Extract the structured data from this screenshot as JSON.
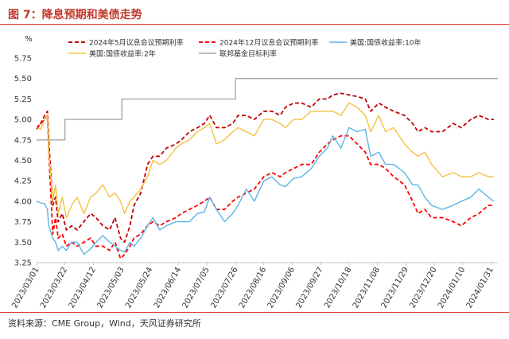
{
  "header": {
    "title": "图 7：降息预期和美债走势"
  },
  "footer": {
    "source": "资料来源：CME Group，Wind，天风证券研究所"
  },
  "chart_data": {
    "type": "line",
    "title": "",
    "xlabel": "",
    "ylabel": "%",
    "ylim": [
      3.25,
      5.75
    ],
    "yticks": [
      "3.25",
      "3.50",
      "3.75",
      "4.00",
      "4.25",
      "4.50",
      "4.75",
      "5.00",
      "5.25",
      "5.50",
      "5.75"
    ],
    "xticks": [
      "2023/03/01",
      "2023/03/22",
      "2023/04/12",
      "2023/05/03",
      "2023/05/24",
      "2023/06/14",
      "2023/07/05",
      "2023/07/26",
      "2023/08/16",
      "2023/09/06",
      "2023/09/27",
      "2023/10/18",
      "2023/11/08",
      "2023/11/29",
      "2023/12/20",
      "2024/01/10",
      "2024/01/31"
    ],
    "xrange": [
      "2023-03-01",
      "2024-02-05"
    ],
    "grid": false,
    "legend_position": "top",
    "series": [
      {
        "name": "2024年5月议息会议预期利率",
        "color": "#c00000",
        "style": "dashed",
        "x": [
          "2023-03-01",
          "2023-03-04",
          "2023-03-07",
          "2023-03-09",
          "2023-03-10",
          "2023-03-13",
          "2023-03-15",
          "2023-03-17",
          "2023-03-20",
          "2023-03-23",
          "2023-03-27",
          "2023-03-31",
          "2023-04-05",
          "2023-04-10",
          "2023-04-14",
          "2023-04-19",
          "2023-04-24",
          "2023-04-28",
          "2023-05-02",
          "2023-05-05",
          "2023-05-09",
          "2023-05-12",
          "2023-05-17",
          "2023-05-22",
          "2023-05-26",
          "2023-05-31",
          "2023-06-05",
          "2023-06-12",
          "2023-06-16",
          "2023-06-22",
          "2023-06-28",
          "2023-07-03",
          "2023-07-07",
          "2023-07-12",
          "2023-07-18",
          "2023-07-24",
          "2023-07-28",
          "2023-08-03",
          "2023-08-09",
          "2023-08-16",
          "2023-08-22",
          "2023-08-28",
          "2023-09-01",
          "2023-09-07",
          "2023-09-13",
          "2023-09-20",
          "2023-09-26",
          "2023-10-02",
          "2023-10-06",
          "2023-10-12",
          "2023-10-18",
          "2023-10-24",
          "2023-10-30",
          "2023-11-03",
          "2023-11-09",
          "2023-11-14",
          "2023-11-20",
          "2023-11-28",
          "2023-12-04",
          "2023-12-08",
          "2023-12-13",
          "2023-12-18",
          "2023-12-26",
          "2024-01-03",
          "2024-01-09",
          "2024-01-16",
          "2024-01-22",
          "2024-01-29",
          "2024-02-02"
        ],
        "values": [
          4.88,
          4.95,
          5.05,
          5.1,
          4.75,
          3.95,
          4.05,
          3.75,
          3.85,
          3.65,
          3.7,
          3.65,
          3.75,
          3.85,
          3.8,
          3.7,
          3.65,
          3.8,
          3.55,
          3.5,
          3.7,
          3.95,
          4.1,
          4.45,
          4.55,
          4.55,
          4.65,
          4.7,
          4.75,
          4.85,
          4.9,
          4.95,
          5.05,
          4.9,
          4.9,
          4.95,
          5.05,
          5.05,
          5.0,
          5.1,
          5.1,
          5.05,
          5.15,
          5.2,
          5.2,
          5.15,
          5.25,
          5.25,
          5.3,
          5.32,
          5.3,
          5.28,
          5.25,
          5.1,
          5.2,
          5.15,
          5.1,
          5.05,
          4.95,
          4.85,
          4.9,
          4.85,
          4.85,
          4.95,
          4.9,
          5.0,
          5.05,
          5.0,
          5.0
        ]
      },
      {
        "name": "2024年12月议息会议预期利率",
        "color": "#ff0000",
        "style": "dashed",
        "x": [
          "2023-03-01",
          "2023-03-04",
          "2023-03-07",
          "2023-03-09",
          "2023-03-10",
          "2023-03-13",
          "2023-03-15",
          "2023-03-17",
          "2023-03-20",
          "2023-03-23",
          "2023-03-27",
          "2023-03-31",
          "2023-04-05",
          "2023-04-10",
          "2023-04-14",
          "2023-04-19",
          "2023-04-24",
          "2023-04-28",
          "2023-05-02",
          "2023-05-05",
          "2023-05-09",
          "2023-05-12",
          "2023-05-17",
          "2023-05-22",
          "2023-05-26",
          "2023-05-31",
          "2023-06-05",
          "2023-06-12",
          "2023-06-16",
          "2023-06-22",
          "2023-06-28",
          "2023-07-03",
          "2023-07-07",
          "2023-07-12",
          "2023-07-18",
          "2023-07-24",
          "2023-07-28",
          "2023-08-03",
          "2023-08-09",
          "2023-08-16",
          "2023-08-22",
          "2023-08-28",
          "2023-09-01",
          "2023-09-07",
          "2023-09-13",
          "2023-09-20",
          "2023-09-26",
          "2023-10-02",
          "2023-10-06",
          "2023-10-12",
          "2023-10-18",
          "2023-10-24",
          "2023-10-30",
          "2023-11-03",
          "2023-11-09",
          "2023-11-14",
          "2023-11-20",
          "2023-11-28",
          "2023-12-04",
          "2023-12-08",
          "2023-12-13",
          "2023-12-18",
          "2023-12-26",
          "2024-01-03",
          "2024-01-09",
          "2024-01-16",
          "2024-01-22",
          "2024-01-29",
          "2024-02-02"
        ],
        "values": [
          4.9,
          4.95,
          5.0,
          5.05,
          4.6,
          3.6,
          3.8,
          3.55,
          3.6,
          3.45,
          3.5,
          3.45,
          3.5,
          3.55,
          3.45,
          3.45,
          3.4,
          3.5,
          3.3,
          3.35,
          3.45,
          3.55,
          3.6,
          3.7,
          3.75,
          3.7,
          3.75,
          3.8,
          3.85,
          3.9,
          3.95,
          4.0,
          4.05,
          3.9,
          3.9,
          4.0,
          4.05,
          4.1,
          4.15,
          4.3,
          4.35,
          4.3,
          4.35,
          4.4,
          4.45,
          4.45,
          4.6,
          4.7,
          4.75,
          4.8,
          4.8,
          4.7,
          4.6,
          4.45,
          4.45,
          4.4,
          4.3,
          4.2,
          4.0,
          3.85,
          3.9,
          3.8,
          3.8,
          3.75,
          3.7,
          3.8,
          3.85,
          3.95,
          3.95
        ]
      },
      {
        "name": "美国:国债收益率:10年",
        "color": "#5bb5e6",
        "style": "solid",
        "x": [
          "2023-03-01",
          "2023-03-04",
          "2023-03-07",
          "2023-03-09",
          "2023-03-10",
          "2023-03-13",
          "2023-03-15",
          "2023-03-17",
          "2023-03-20",
          "2023-03-23",
          "2023-03-27",
          "2023-03-31",
          "2023-04-05",
          "2023-04-10",
          "2023-04-14",
          "2023-04-19",
          "2023-04-24",
          "2023-04-28",
          "2023-05-02",
          "2023-05-05",
          "2023-05-09",
          "2023-05-12",
          "2023-05-17",
          "2023-05-22",
          "2023-05-26",
          "2023-05-31",
          "2023-06-05",
          "2023-06-12",
          "2023-06-16",
          "2023-06-22",
          "2023-06-28",
          "2023-07-03",
          "2023-07-07",
          "2023-07-12",
          "2023-07-18",
          "2023-07-24",
          "2023-07-28",
          "2023-08-03",
          "2023-08-09",
          "2023-08-16",
          "2023-08-22",
          "2023-08-28",
          "2023-09-01",
          "2023-09-07",
          "2023-09-13",
          "2023-09-20",
          "2023-09-26",
          "2023-10-02",
          "2023-10-06",
          "2023-10-12",
          "2023-10-18",
          "2023-10-24",
          "2023-10-30",
          "2023-11-03",
          "2023-11-09",
          "2023-11-14",
          "2023-11-20",
          "2023-11-28",
          "2023-12-04",
          "2023-12-08",
          "2023-12-13",
          "2023-12-18",
          "2023-12-26",
          "2024-01-03",
          "2024-01-09",
          "2024-01-16",
          "2024-01-22",
          "2024-01-29",
          "2024-02-02"
        ],
        "values": [
          4.0,
          3.98,
          3.97,
          3.9,
          3.7,
          3.55,
          3.5,
          3.4,
          3.45,
          3.4,
          3.5,
          3.5,
          3.35,
          3.42,
          3.5,
          3.58,
          3.5,
          3.45,
          3.4,
          3.38,
          3.5,
          3.45,
          3.55,
          3.7,
          3.8,
          3.65,
          3.7,
          3.75,
          3.75,
          3.75,
          3.85,
          3.87,
          4.05,
          3.9,
          3.75,
          3.85,
          3.95,
          4.15,
          4.0,
          4.25,
          4.3,
          4.2,
          4.18,
          4.28,
          4.3,
          4.4,
          4.55,
          4.65,
          4.8,
          4.65,
          4.9,
          4.85,
          4.88,
          4.55,
          4.6,
          4.45,
          4.45,
          4.35,
          4.2,
          4.2,
          4.05,
          3.95,
          3.9,
          3.95,
          4.0,
          4.05,
          4.15,
          4.05,
          4.0
        ]
      },
      {
        "name": "美国:国债收益率:2年",
        "color": "#f4c142",
        "style": "solid",
        "x": [
          "2023-03-01",
          "2023-03-04",
          "2023-03-07",
          "2023-03-09",
          "2023-03-10",
          "2023-03-13",
          "2023-03-15",
          "2023-03-17",
          "2023-03-20",
          "2023-03-23",
          "2023-03-27",
          "2023-03-31",
          "2023-04-05",
          "2023-04-10",
          "2023-04-14",
          "2023-04-19",
          "2023-04-24",
          "2023-04-28",
          "2023-05-02",
          "2023-05-05",
          "2023-05-09",
          "2023-05-12",
          "2023-05-17",
          "2023-05-22",
          "2023-05-26",
          "2023-05-31",
          "2023-06-05",
          "2023-06-12",
          "2023-06-16",
          "2023-06-22",
          "2023-06-28",
          "2023-07-03",
          "2023-07-07",
          "2023-07-12",
          "2023-07-18",
          "2023-07-24",
          "2023-07-28",
          "2023-08-03",
          "2023-08-09",
          "2023-08-16",
          "2023-08-22",
          "2023-08-28",
          "2023-09-01",
          "2023-09-07",
          "2023-09-13",
          "2023-09-20",
          "2023-09-26",
          "2023-10-02",
          "2023-10-06",
          "2023-10-12",
          "2023-10-18",
          "2023-10-24",
          "2023-10-30",
          "2023-11-03",
          "2023-11-09",
          "2023-11-14",
          "2023-11-20",
          "2023-11-28",
          "2023-12-04",
          "2023-12-08",
          "2023-12-13",
          "2023-12-18",
          "2023-12-26",
          "2024-01-03",
          "2024-01-09",
          "2024-01-16",
          "2024-01-22",
          "2024-01-29",
          "2024-02-02"
        ],
        "values": [
          4.9,
          4.88,
          5.0,
          5.05,
          4.6,
          4.0,
          4.2,
          3.85,
          4.05,
          3.8,
          3.95,
          4.05,
          3.85,
          4.05,
          4.1,
          4.2,
          4.05,
          4.1,
          4.0,
          3.85,
          4.0,
          4.05,
          4.15,
          4.3,
          4.5,
          4.45,
          4.5,
          4.65,
          4.7,
          4.75,
          4.85,
          4.9,
          4.95,
          4.7,
          4.75,
          4.85,
          4.9,
          4.85,
          4.8,
          5.0,
          5.0,
          4.95,
          4.9,
          5.0,
          5.0,
          5.1,
          5.1,
          5.1,
          5.1,
          5.05,
          5.2,
          5.15,
          5.05,
          4.85,
          5.05,
          4.85,
          4.9,
          4.7,
          4.6,
          4.55,
          4.6,
          4.45,
          4.3,
          4.35,
          4.3,
          4.3,
          4.35,
          4.3,
          4.3
        ]
      },
      {
        "name": "联邦基金目标利率",
        "color": "#a6a6a6",
        "style": "solid",
        "step": true,
        "x": [
          "2023-03-01",
          "2023-03-22",
          "2023-05-03",
          "2023-07-26",
          "2024-02-05"
        ],
        "values": [
          4.75,
          5.0,
          5.25,
          5.5,
          5.5
        ]
      }
    ]
  }
}
